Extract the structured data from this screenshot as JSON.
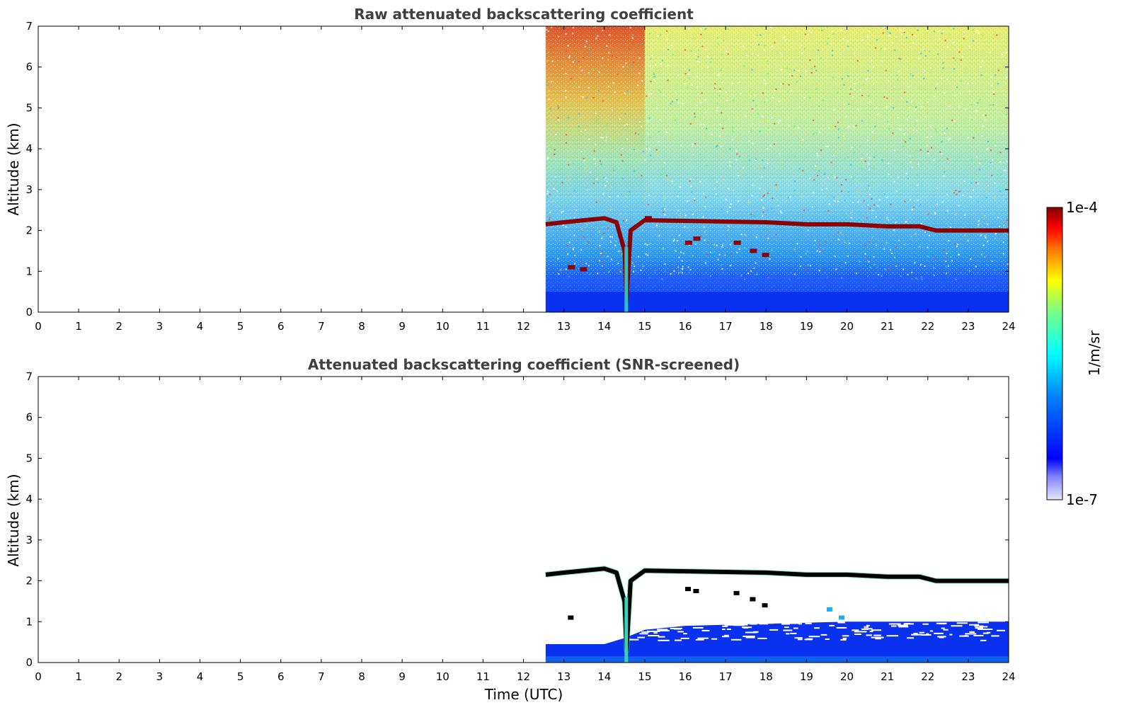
{
  "colors": {
    "jet": [
      "#00008f",
      "#0000ff",
      "#0080ff",
      "#00ffff",
      "#80ff80",
      "#ffff00",
      "#ff8000",
      "#ff0000",
      "#800000"
    ],
    "cloud_top": "#000000",
    "background": "#ffffff"
  },
  "colorbar": {
    "max_label": "1e-4",
    "min_label": "1e-7",
    "unit": "1/m/sr",
    "scale": "log",
    "range": [
      1e-07,
      0.0001
    ]
  },
  "chart_data": [
    {
      "type": "heatmap",
      "title": "Raw attenuated backscattering coefficient",
      "xlabel": "",
      "ylabel": "Altitude (km)",
      "xlim": [
        0,
        24
      ],
      "ylim": [
        0,
        7
      ],
      "x_ticks": [
        "0",
        "1",
        "2",
        "3",
        "4",
        "5",
        "6",
        "7",
        "8",
        "9",
        "10",
        "11",
        "12",
        "13",
        "14",
        "15",
        "16",
        "17",
        "18",
        "19",
        "20",
        "21",
        "22",
        "23",
        "24"
      ],
      "y_ticks": [
        "0",
        "1",
        "2",
        "3",
        "4",
        "5",
        "6",
        "7"
      ],
      "data_start_time": 12.55,
      "cloud_layer_altitude_km": [
        [
          12.55,
          2.15
        ],
        [
          13.0,
          2.2
        ],
        [
          13.5,
          2.25
        ],
        [
          14.0,
          2.3
        ],
        [
          14.3,
          2.2
        ],
        [
          14.5,
          1.5
        ],
        [
          14.55,
          0.3
        ],
        [
          14.65,
          2.0
        ],
        [
          15.0,
          2.25
        ],
        [
          18.0,
          2.2
        ],
        [
          19.0,
          2.15
        ],
        [
          20.0,
          2.15
        ],
        [
          21.0,
          2.1
        ],
        [
          21.8,
          2.1
        ],
        [
          22.2,
          2.0
        ],
        [
          23.0,
          2.0
        ],
        [
          24.0,
          2.0
        ]
      ]
    },
    {
      "type": "heatmap",
      "title": "Attenuated backscattering coefficient (SNR-screened)",
      "xlabel": "Time (UTC)",
      "ylabel": "Altitude (km)",
      "xlim": [
        0,
        24
      ],
      "ylim": [
        0,
        7
      ],
      "x_ticks": [
        "0",
        "1",
        "2",
        "3",
        "4",
        "5",
        "6",
        "7",
        "8",
        "9",
        "10",
        "11",
        "12",
        "13",
        "14",
        "15",
        "16",
        "17",
        "18",
        "19",
        "20",
        "21",
        "22",
        "23",
        "24"
      ],
      "y_ticks": [
        "0",
        "1",
        "2",
        "3",
        "4",
        "5",
        "6",
        "7"
      ],
      "data_start_time": 12.55,
      "boundary_layer_top_km": [
        [
          12.55,
          0.45
        ],
        [
          14.0,
          0.45
        ],
        [
          14.5,
          0.6
        ],
        [
          15.0,
          0.8
        ],
        [
          16.0,
          0.9
        ],
        [
          18.0,
          0.95
        ],
        [
          20.0,
          1.0
        ],
        [
          22.0,
          1.0
        ],
        [
          24.0,
          1.0
        ]
      ]
    }
  ]
}
